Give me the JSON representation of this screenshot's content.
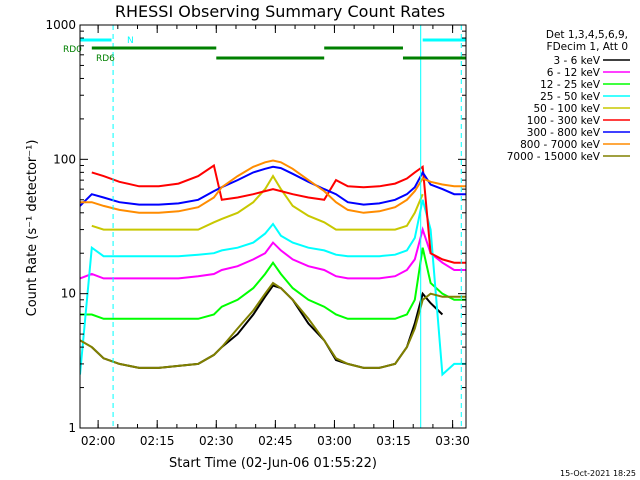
{
  "chart_data": {
    "type": "line",
    "title": "RHESSI Observing Summary Count Rates",
    "xlabel": "Start Time (02-Jun-06 01:55:22)",
    "ylabel": "Count Rate (s⁻¹ detector⁻¹)",
    "yscale": "log",
    "ylim": [
      1,
      1000
    ],
    "x_unit": "minutes after 01:55:22",
    "xlim": [
      0,
      98
    ],
    "x_ticks": [
      {
        "label": "02:00",
        "minute": 4.6
      },
      {
        "label": "02:15",
        "minute": 19.6
      },
      {
        "label": "02:30",
        "minute": 34.6
      },
      {
        "label": "02:45",
        "minute": 49.6
      },
      {
        "label": "03:00",
        "minute": 64.6
      },
      {
        "label": "03:15",
        "minute": 79.6
      },
      {
        "label": "03:30",
        "minute": 94.6
      }
    ],
    "y_ticks": [
      {
        "label": "1",
        "value": 1
      },
      {
        "label": "10",
        "value": 10
      },
      {
        "label": "100",
        "value": 100
      },
      {
        "label": "1000",
        "value": 1000
      }
    ],
    "legend_header": [
      "Det 1,3,4,5,6,9,",
      "FDecim 1, Att 0"
    ],
    "legend_position": "right",
    "x": [
      0,
      3,
      6,
      10,
      15,
      20,
      25,
      30,
      34,
      36,
      40,
      44,
      47,
      49,
      51,
      54,
      58,
      62,
      65,
      68,
      72,
      76,
      80,
      83,
      85,
      87,
      89,
      92,
      95,
      98
    ],
    "series": [
      {
        "name": "3 - 6 keV",
        "color": "#000000",
        "values": [
          null,
          4,
          3.3,
          3,
          2.8,
          2.8,
          2.9,
          3,
          3.5,
          4,
          5,
          7,
          9.5,
          11.5,
          11,
          9,
          6,
          4.5,
          3.2,
          3,
          2.8,
          2.8,
          3,
          4,
          6,
          10,
          8.5,
          7,
          null,
          null
        ]
      },
      {
        "name": "6 - 12 keV",
        "color": "#ff00ff",
        "values": [
          13,
          14,
          13,
          13,
          13,
          13,
          13,
          13.5,
          14,
          15,
          16,
          18,
          20,
          24,
          21,
          18,
          16,
          15,
          13.5,
          13,
          13,
          13,
          13.5,
          15,
          18,
          30,
          20,
          17,
          15,
          15
        ]
      },
      {
        "name": "12 - 25 keV",
        "color": "#00ff00",
        "values": [
          7,
          7,
          6.5,
          6.5,
          6.5,
          6.5,
          6.5,
          6.5,
          7,
          8,
          9,
          11,
          14,
          17,
          14,
          11,
          9,
          8,
          7,
          6.5,
          6.5,
          6.5,
          6.5,
          7,
          9,
          22,
          12,
          10,
          9,
          9
        ]
      },
      {
        "name": "25 - 50 keV",
        "color": "#00ffff",
        "values": [
          2.5,
          22,
          19,
          19,
          19,
          19,
          19,
          19.5,
          20,
          21,
          22,
          24,
          28,
          33,
          27,
          24,
          22,
          21,
          19.5,
          19,
          19,
          19,
          19.5,
          21,
          26,
          50,
          30,
          2.5,
          3,
          3
        ]
      },
      {
        "name": "50 - 100 keV",
        "color": "#c8c800",
        "values": [
          null,
          32,
          30,
          30,
          30,
          30,
          30,
          30,
          34,
          36,
          40,
          48,
          60,
          75,
          60,
          45,
          38,
          34,
          30,
          30,
          30,
          30,
          30,
          32,
          40,
          55,
          null,
          null,
          null,
          null
        ]
      },
      {
        "name": "100 - 300 keV",
        "color": "#ff0000",
        "values": [
          null,
          80,
          75,
          68,
          63,
          63,
          66,
          75,
          90,
          50,
          52,
          55,
          58,
          60,
          58,
          55,
          52,
          50,
          70,
          63,
          62,
          63,
          66,
          72,
          80,
          88,
          20,
          18,
          17,
          17
        ]
      },
      {
        "name": "300 - 800 keV",
        "color": "#0000ff",
        "values": [
          45,
          55,
          52,
          48,
          46,
          46,
          47,
          50,
          58,
          62,
          70,
          80,
          85,
          88,
          86,
          78,
          68,
          60,
          55,
          48,
          46,
          47,
          50,
          55,
          62,
          80,
          65,
          60,
          55,
          55
        ]
      },
      {
        "name": "800 - 7000 keV",
        "color": "#ff8c00",
        "values": [
          48,
          48,
          45,
          42,
          40,
          40,
          41,
          44,
          52,
          62,
          75,
          88,
          95,
          98,
          95,
          85,
          70,
          58,
          48,
          42,
          40,
          41,
          44,
          50,
          58,
          72,
          68,
          65,
          63,
          63
        ]
      },
      {
        "name": "7000 - 15000 keV",
        "color": "#808000",
        "values": [
          4.5,
          4,
          3.3,
          3,
          2.8,
          2.8,
          2.9,
          3,
          3.5,
          4,
          5.5,
          7.5,
          10,
          12,
          11,
          9,
          6.5,
          4.5,
          3.3,
          3,
          2.8,
          2.8,
          3,
          4,
          5.5,
          9,
          10,
          9.5,
          9.5,
          9.5
        ]
      }
    ],
    "annotations": [
      {
        "label": "RD0",
        "color": "#008000"
      },
      {
        "label": "RD6",
        "color": "#008000"
      },
      {
        "label": "N",
        "color": "#00ffff"
      }
    ],
    "night_bars": [
      {
        "label": "N",
        "color": "#00ffff",
        "start": 0,
        "end": 8
      },
      {
        "label": "N",
        "color": "#00ffff",
        "start": 87,
        "end": 98
      }
    ],
    "saa_vertical_lines_minutes": [
      0,
      8.4,
      86.5,
      96.8
    ],
    "green_marker_bars": [
      {
        "start": 3,
        "end": 34.6,
        "level": "high"
      },
      {
        "start": 34.6,
        "end": 62,
        "level": "low"
      },
      {
        "start": 62,
        "end": 82,
        "level": "high"
      },
      {
        "start": 82,
        "end": 98,
        "level": "low"
      }
    ],
    "footer_timestamp": "15-Oct-2021 18:25"
  }
}
